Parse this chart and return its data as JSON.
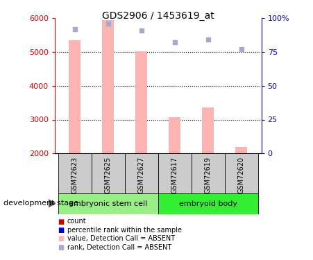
{
  "title": "GDS2906 / 1453619_at",
  "samples": [
    "GSM72623",
    "GSM72625",
    "GSM72627",
    "GSM72617",
    "GSM72619",
    "GSM72620"
  ],
  "group_labels": [
    "embryonic stem cell",
    "embryoid body"
  ],
  "bar_values": [
    5350,
    5950,
    5020,
    3080,
    3350,
    2200
  ],
  "bar_color": "#ffb3b3",
  "rank_values": [
    92,
    96,
    91,
    82,
    84,
    77
  ],
  "rank_color": "#a8a8cc",
  "ylim_left": [
    2000,
    6000
  ],
  "ylim_right": [
    0,
    100
  ],
  "yticks_left": [
    2000,
    3000,
    4000,
    5000,
    6000
  ],
  "yticks_right": [
    0,
    25,
    50,
    75,
    100
  ],
  "ytick_labels_right": [
    "0",
    "25",
    "50",
    "75",
    "100%"
  ],
  "left_axis_color": "#cc0000",
  "right_axis_color": "#0000cc",
  "group_bg_color": "#cccccc",
  "group1_color": "#99ee88",
  "group2_color": "#33ee33",
  "development_stage_label": "development stage",
  "legend_colors": [
    "#cc0000",
    "#0000cc",
    "#ffb3b3",
    "#a8a8cc"
  ],
  "legend_labels": [
    "count",
    "percentile rank within the sample",
    "value, Detection Call = ABSENT",
    "rank, Detection Call = ABSENT"
  ],
  "bar_bottom": 2000,
  "bar_width": 0.35,
  "figsize": [
    4.51,
    3.75
  ],
  "dpi": 100
}
